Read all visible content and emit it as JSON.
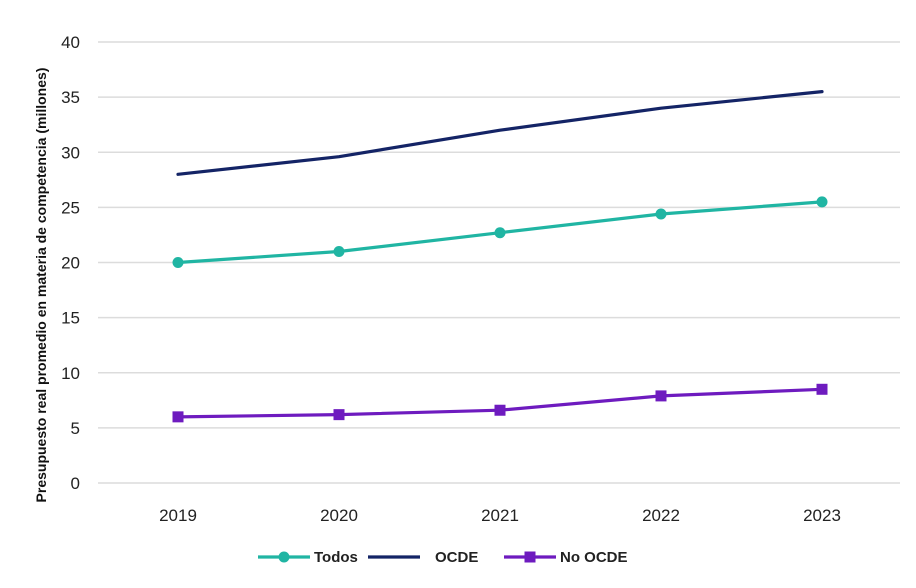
{
  "chart_data": {
    "type": "line",
    "title": "",
    "xlabel": "",
    "ylabel": "Presupuesto real promedio en materia de competencia (millones)",
    "categories": [
      "2019",
      "2020",
      "2021",
      "2022",
      "2023"
    ],
    "ylim": [
      0,
      40
    ],
    "yticks": [
      "0",
      "5",
      "10",
      "15",
      "20",
      "25",
      "30",
      "35",
      "40"
    ],
    "grid": true,
    "legend_position": "bottom",
    "series": [
      {
        "name": "Todos",
        "values": [
          20,
          21,
          22.7,
          24.4,
          25.5
        ],
        "color": "#20b5a3",
        "marker": "circle"
      },
      {
        "name": "OCDE",
        "values": [
          28,
          29.6,
          32,
          34,
          35.5
        ],
        "color": "#142466",
        "marker": "none"
      },
      {
        "name": "No OCDE",
        "values": [
          6,
          6.2,
          6.6,
          7.9,
          8.5
        ],
        "color": "#6e1bbf",
        "marker": "square"
      }
    ]
  }
}
